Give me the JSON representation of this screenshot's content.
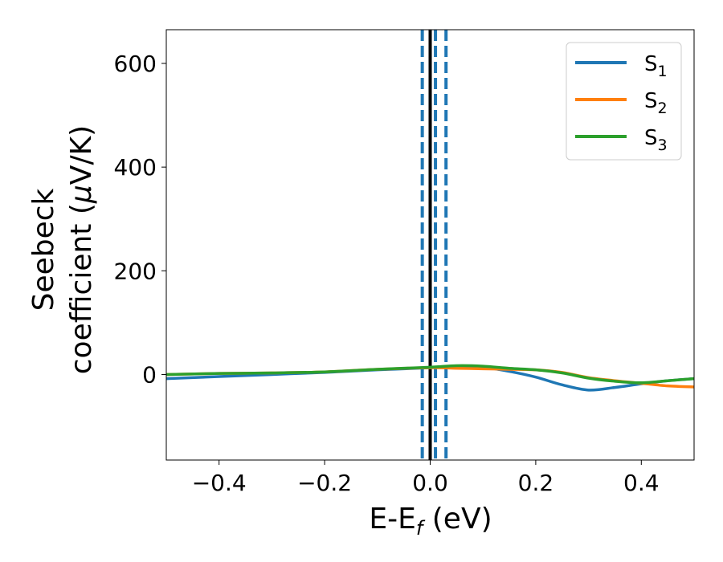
{
  "chart_data": {
    "type": "line",
    "title": "",
    "xlabel_main": "E-E",
    "xlabel_sub": "f",
    "xlabel_unit": " (eV)",
    "ylabel_line1": "Seebeck",
    "ylabel_line2_a": "coefficient  (",
    "ylabel_line2_mu": "μ",
    "ylabel_line2_b": "V/K)",
    "xlim": [
      -0.5,
      0.5
    ],
    "ylim": [
      -165,
      665
    ],
    "x_ticks": [
      -0.4,
      -0.2,
      0.0,
      0.2,
      0.4
    ],
    "x_tick_labels": [
      "−0.4",
      "−0.2",
      "0.0",
      "0.2",
      "0.4"
    ],
    "y_ticks": [
      0,
      200,
      400,
      600
    ],
    "y_tick_labels": [
      "0",
      "200",
      "400",
      "600"
    ],
    "legend_position": "top-right",
    "series": [
      {
        "name": "S",
        "sub": "1",
        "color": "#1f77b4",
        "x": [
          -0.5,
          -0.4,
          -0.3,
          -0.2,
          -0.1,
          0.0,
          0.05,
          0.1,
          0.15,
          0.2,
          0.25,
          0.3,
          0.35,
          0.4,
          0.45,
          0.5
        ],
        "y": [
          -8,
          -4,
          0,
          4,
          9,
          13,
          16,
          14,
          6,
          -5,
          -20,
          -30,
          -25,
          -18,
          -12,
          -8
        ]
      },
      {
        "name": "S",
        "sub": "2",
        "color": "#ff7f0e",
        "x": [
          -0.5,
          -0.4,
          -0.3,
          -0.2,
          -0.1,
          0.0,
          0.05,
          0.1,
          0.15,
          0.2,
          0.25,
          0.3,
          0.35,
          0.4,
          0.45,
          0.5
        ],
        "y": [
          0,
          2,
          3,
          5,
          10,
          13,
          12,
          11,
          10,
          9,
          4,
          -6,
          -12,
          -17,
          -22,
          -24
        ]
      },
      {
        "name": "S",
        "sub": "3",
        "color": "#2ca02c",
        "x": [
          -0.5,
          -0.4,
          -0.3,
          -0.2,
          -0.1,
          0.0,
          0.05,
          0.1,
          0.15,
          0.2,
          0.25,
          0.3,
          0.35,
          0.4,
          0.45,
          0.5
        ],
        "y": [
          0,
          2,
          3,
          5,
          10,
          14,
          17,
          16,
          12,
          9,
          3,
          -7,
          -13,
          -16,
          -12,
          -8
        ]
      }
    ],
    "vlines": [
      {
        "x": -0.015,
        "style": "dashed",
        "color": "#1f77b4"
      },
      {
        "x": 0.0,
        "style": "solid",
        "color": "#000000"
      },
      {
        "x": 0.01,
        "style": "dashed",
        "color": "#1f77b4"
      },
      {
        "x": 0.03,
        "style": "dashed",
        "color": "#1f77b4"
      }
    ]
  }
}
